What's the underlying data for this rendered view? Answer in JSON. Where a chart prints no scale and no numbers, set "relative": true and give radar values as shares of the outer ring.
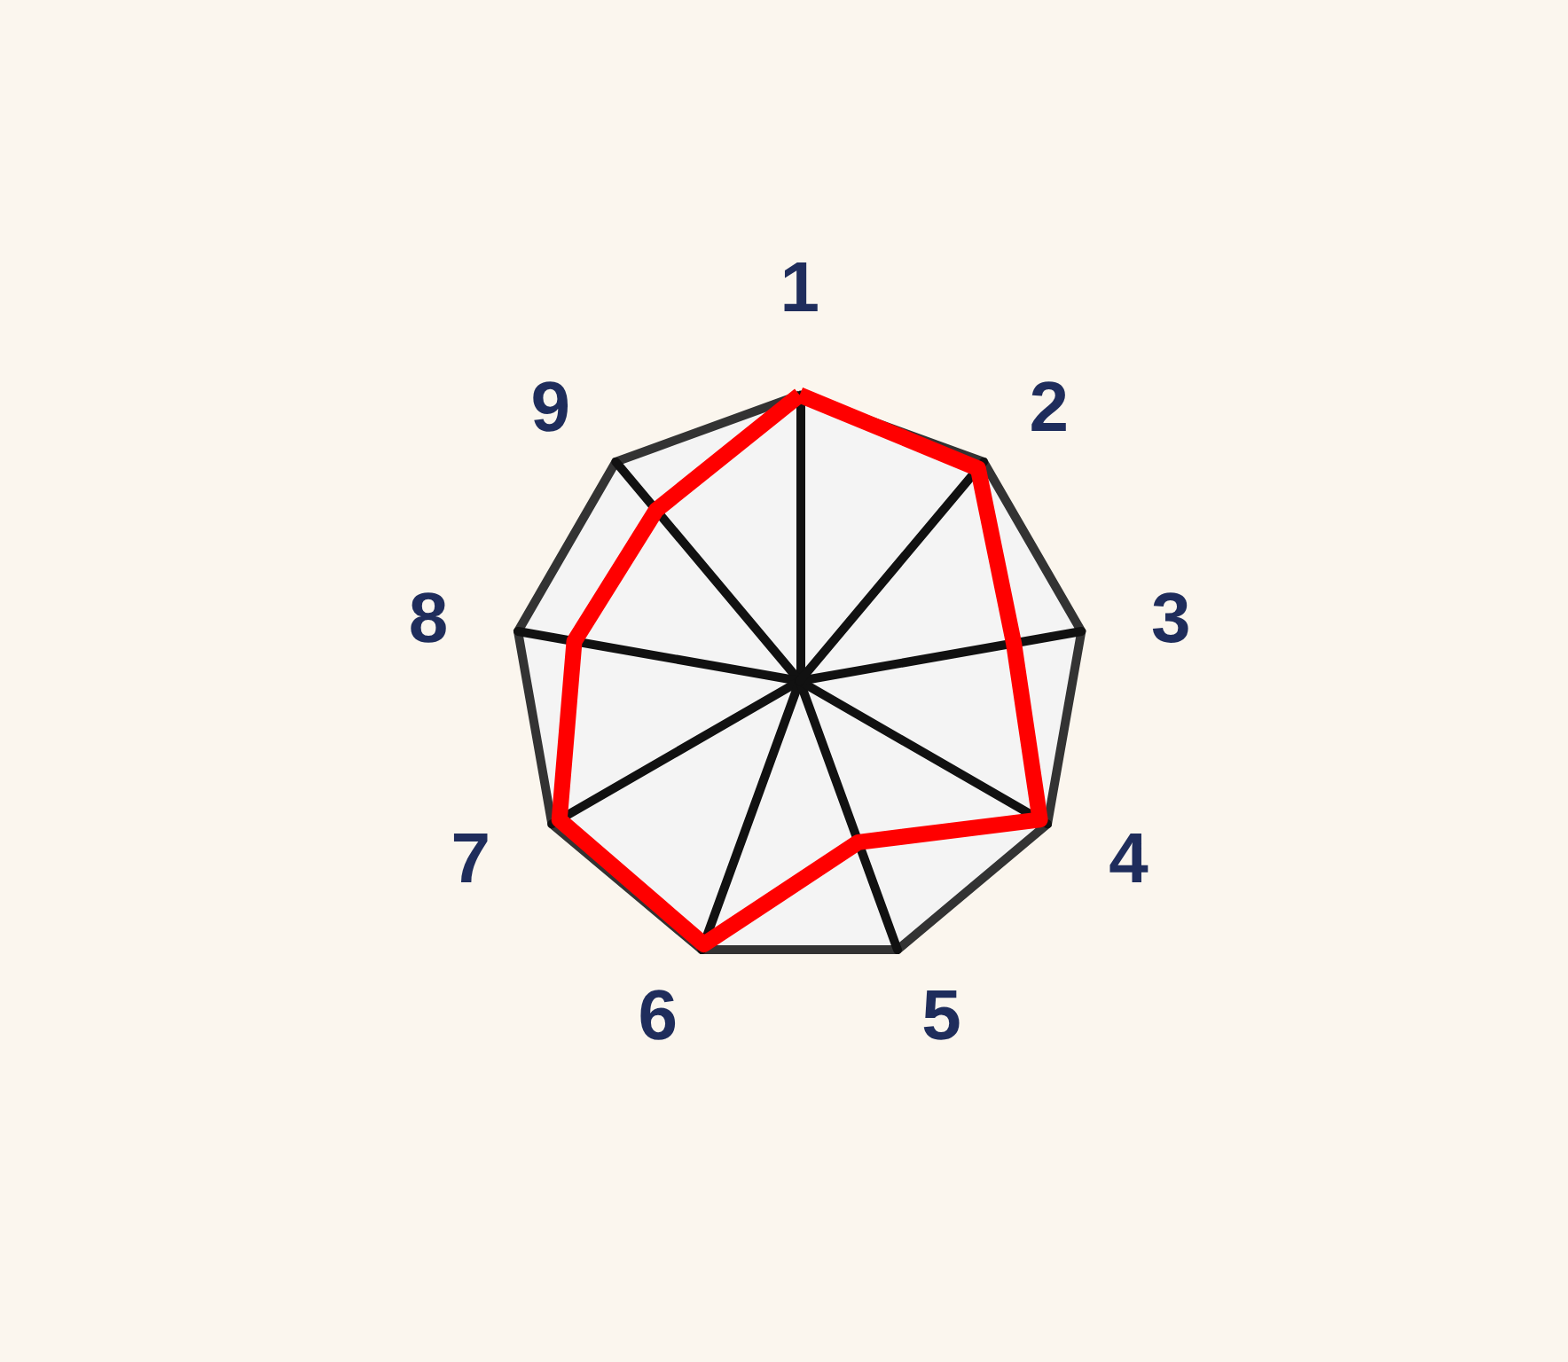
{
  "chart_data": {
    "type": "radar",
    "relative": true,
    "categories": [
      "1",
      "2",
      "3",
      "4",
      "5",
      "6",
      "7",
      "8",
      "9"
    ],
    "series": [
      {
        "color": "#ff0000",
        "values": [
          1.0,
          0.97,
          0.76,
          0.97,
          0.6,
          0.98,
          0.97,
          0.8,
          0.78
        ]
      }
    ],
    "marker": "none"
  }
}
